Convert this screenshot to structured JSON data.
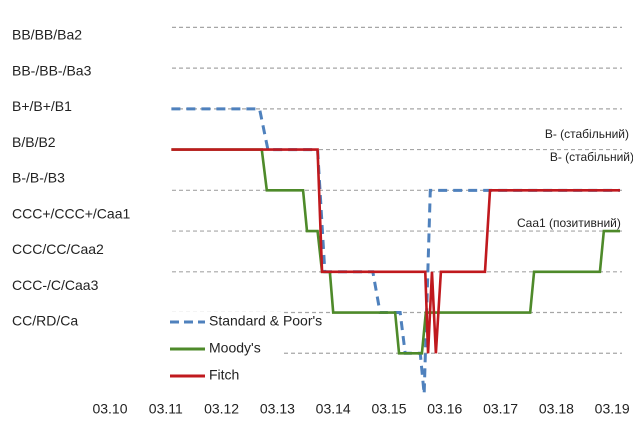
{
  "chart_data": {
    "type": "line",
    "xlim": [
      10,
      19.2
    ],
    "xticks": [
      {
        "value": 10,
        "label": "03.10"
      },
      {
        "value": 11,
        "label": "03.11"
      },
      {
        "value": 12,
        "label": "03.12"
      },
      {
        "value": 13,
        "label": "03.13"
      },
      {
        "value": 14,
        "label": "03.14"
      },
      {
        "value": 15,
        "label": "03.15"
      },
      {
        "value": 16,
        "label": "03.16"
      },
      {
        "value": 17,
        "label": "03.17"
      },
      {
        "value": 18,
        "label": "03.18"
      },
      {
        "value": 19,
        "label": "03.19"
      }
    ],
    "ylim": [
      0,
      9.5
    ],
    "yticks": [
      {
        "value": 9,
        "label": "BB/BB/Ba2"
      },
      {
        "value": 8,
        "label": "BB-/BB-/Ba3"
      },
      {
        "value": 7,
        "label": "B+/B+/B1"
      },
      {
        "value": 6,
        "label": "B/B/B2"
      },
      {
        "value": 5,
        "label": "B-/B-/B3"
      },
      {
        "value": 4,
        "label": "CCC+/CCC+/Caa1"
      },
      {
        "value": 3,
        "label": "CCC/CC/Caa2"
      },
      {
        "value": 2,
        "label": "CCC-/C/Caa3"
      },
      {
        "value": 1,
        "label": "CC/RD/Ca"
      }
    ],
    "grid": true,
    "series": [
      {
        "name": "Standard & Poor's",
        "color": "#4f81bd",
        "dashed": true,
        "x": [
          11.1,
          12.68,
          12.83,
          13.72,
          13.85,
          14.71,
          14.84,
          15.2,
          15.29,
          15.56,
          15.63,
          15.74,
          19.14
        ],
        "values": [
          7,
          7,
          6,
          6,
          3,
          3,
          2,
          2,
          1,
          1,
          0,
          5,
          5
        ]
      },
      {
        "name": "Moody's",
        "color": "#4e8a2a",
        "dashed": false,
        "x": [
          11.1,
          12.72,
          12.81,
          13.46,
          13.53,
          13.72,
          13.8,
          13.94,
          14.0,
          15.11,
          15.18,
          15.59,
          15.66,
          17.53,
          17.6,
          18.78,
          18.85,
          19.14
        ],
        "values": [
          6,
          6,
          5,
          5,
          4,
          4,
          3,
          3,
          2,
          2,
          1,
          1,
          2,
          2,
          3,
          3,
          4,
          4
        ]
      },
      {
        "name": "Fitch",
        "color": "#c0191e",
        "dashed": false,
        "x": [
          11.1,
          13.72,
          13.8,
          15.65,
          15.7,
          15.77,
          15.84,
          15.93,
          16.72,
          16.81,
          19.14
        ],
        "values": [
          6,
          6,
          3,
          3,
          1,
          3,
          1,
          3,
          3,
          5,
          5
        ]
      }
    ],
    "annotations": [
      {
        "text": "B- (стабільний)",
        "color": "#c0191e"
      },
      {
        "text": "B- (стабільний)",
        "color": "#4f81bd"
      },
      {
        "text": "Caa1 (позитивний)",
        "color": "#4e8a2a"
      }
    ]
  }
}
